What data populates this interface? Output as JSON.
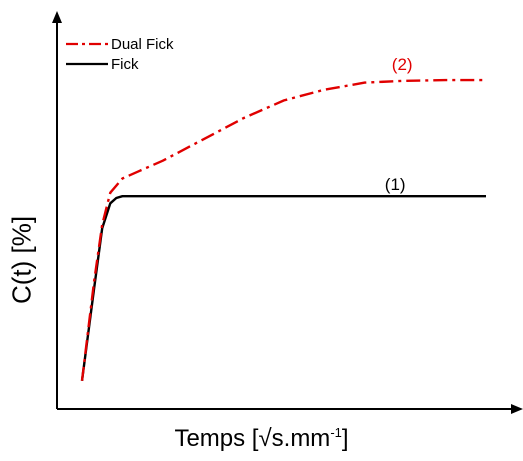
{
  "chart_data": {
    "type": "line",
    "title": "",
    "ylabel": "C(t) [%]",
    "xlabel": {
      "text": "Temps [√s.mm",
      "superscript": "-1",
      "suffix": "]"
    },
    "xlim": [
      0,
      100
    ],
    "ylim": [
      0,
      100
    ],
    "grid": false,
    "ticks_shown": false,
    "legend_position": "top-left",
    "series": [
      {
        "name": "Dual Fick",
        "label": "(2)",
        "color": "#e00000",
        "style": "dash-dot",
        "x": [
          0,
          3,
          5,
          7,
          10,
          14,
          20,
          30,
          40,
          50,
          60,
          70,
          80,
          90,
          100
        ],
        "y": [
          4,
          32,
          48,
          57,
          61,
          63,
          66,
          72,
          78,
          83,
          86,
          88,
          88.5,
          88.7,
          88.7
        ]
      },
      {
        "name": "Fick",
        "label": "(1)",
        "color": "#000000",
        "style": "solid",
        "x": [
          0,
          3,
          5,
          7,
          8.5,
          10,
          12,
          20,
          40,
          60,
          80,
          100
        ],
        "y": [
          4,
          30,
          47,
          54,
          55.5,
          56,
          56,
          56,
          56,
          56,
          56,
          56
        ]
      }
    ]
  }
}
